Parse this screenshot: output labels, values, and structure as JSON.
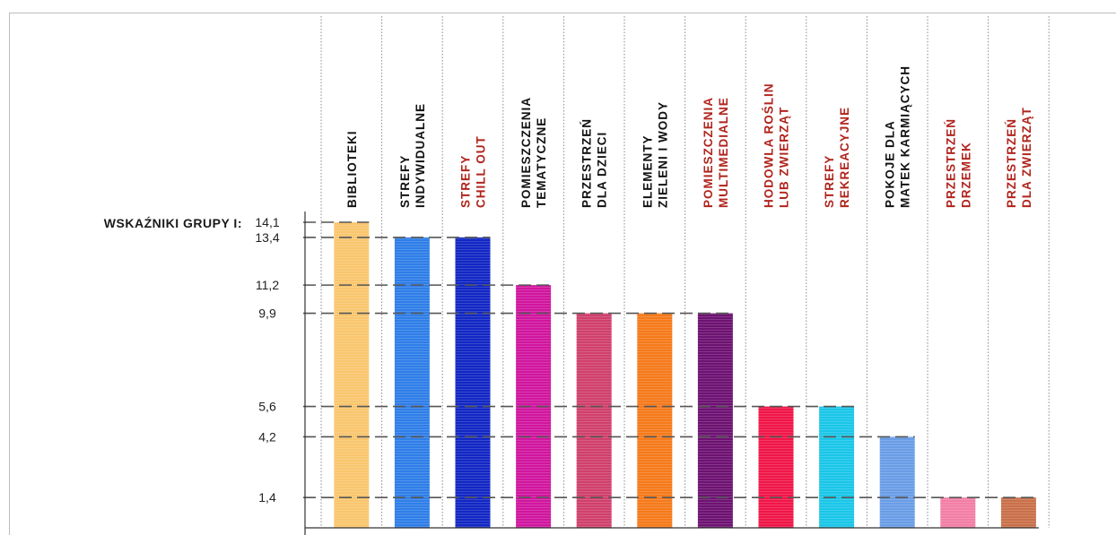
{
  "chart_data": {
    "type": "bar",
    "title": "WSKAŹNIKI GRUPY I:",
    "categories": [
      {
        "lines": [
          "BIBLIOTEKI"
        ],
        "color": "#111111"
      },
      {
        "lines": [
          "STREFY",
          "INDYWIDUALNE"
        ],
        "color": "#111111"
      },
      {
        "lines": [
          "STREFY",
          "CHILL OUT"
        ],
        "color": "#b0241c"
      },
      {
        "lines": [
          "POMIESZCZENIA",
          "TEMATYCZNE"
        ],
        "color": "#111111"
      },
      {
        "lines": [
          "PRZESTRZEŃ",
          "DLA DZIECI"
        ],
        "color": "#111111"
      },
      {
        "lines": [
          "ELEMENTY",
          "ZIELENI I WODY"
        ],
        "color": "#111111"
      },
      {
        "lines": [
          "POMIESZCZENIA",
          "MULTIMEDIALNE"
        ],
        "color": "#b0241c"
      },
      {
        "lines": [
          "HODOWLA ROŚLIN",
          "LUB ZWIERZĄT"
        ],
        "color": "#b0241c"
      },
      {
        "lines": [
          "STREFY",
          "REKREACYJNE"
        ],
        "color": "#b0241c"
      },
      {
        "lines": [
          "POKOJE DLA",
          "MATEK KARMIĄCYCH"
        ],
        "color": "#111111"
      },
      {
        "lines": [
          "PRZESTRZEŃ",
          "DRZEMEK"
        ],
        "color": "#b0241c"
      },
      {
        "lines": [
          "PRZESTRZEŃ",
          "DLA ZWIERZĄT"
        ],
        "color": "#b0241c"
      }
    ],
    "values": [
      14.1,
      13.4,
      13.4,
      11.2,
      9.9,
      9.9,
      9.9,
      5.6,
      5.6,
      4.2,
      1.4,
      1.4
    ],
    "bar_colors": [
      "#f9c66e",
      "#2f7ee8",
      "#1227c4",
      "#d0169f",
      "#d0406d",
      "#f57a1b",
      "#6d1272",
      "#f01648",
      "#1ac6e8",
      "#6a9de6",
      "#f27ea6",
      "#c9704a"
    ],
    "tick_labels": [
      "14,1",
      "13,4",
      "11,2",
      "9,9",
      "5,6",
      "4,2",
      "1,4"
    ],
    "tick_values": [
      14.1,
      13.4,
      11.2,
      9.9,
      5.6,
      4.2,
      1.4
    ],
    "ylim": [
      0,
      14.1
    ],
    "xlabel": "",
    "ylabel": "",
    "grid": "dashed reference lines at tick values"
  }
}
